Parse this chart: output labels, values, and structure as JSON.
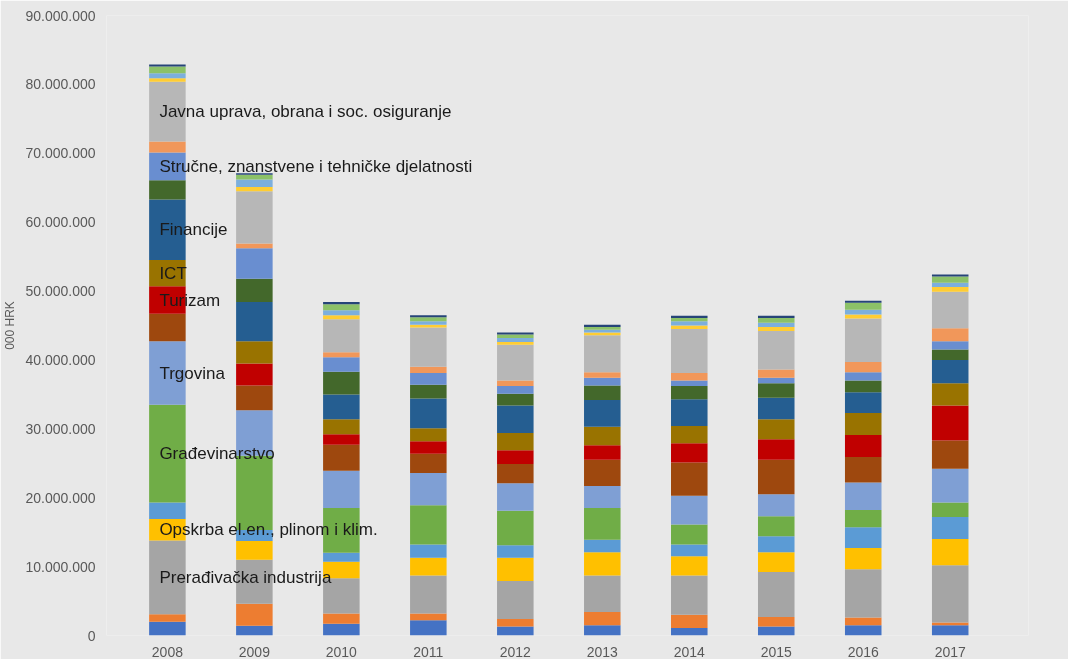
{
  "chart_data": {
    "type": "bar",
    "stacked": true,
    "ylabel": "000 HRK",
    "categories": [
      "2008",
      "2009",
      "2010",
      "2011",
      "2012",
      "2013",
      "2014",
      "2015",
      "2016",
      "2017"
    ],
    "ylim": [
      0,
      90000000
    ],
    "yticks": [
      0,
      {
        "value": 10000000,
        "label": "10.000.000"
      },
      {
        "value": 20000000,
        "label": "20.000.000"
      },
      {
        "value": 30000000,
        "label": "30.000.000"
      },
      {
        "value": 40000000,
        "label": "40.000.000"
      },
      {
        "value": 50000000,
        "label": "50.000.000"
      },
      {
        "value": 60000000,
        "label": "60.000.000"
      },
      {
        "value": 70000000,
        "label": "70.000.000"
      },
      {
        "value": 80000000,
        "label": "80.000.000"
      },
      {
        "value": 90000000,
        "label": "90.000.000"
      }
    ],
    "series": [
      {
        "color": "#4472c4",
        "values": [
          2000000,
          1400000,
          1700000,
          2200000,
          1300000,
          1500000,
          1100000,
          1300000,
          1500000,
          1500000
        ]
      },
      {
        "color": "#ed7d31",
        "values": [
          1100000,
          3200000,
          1500000,
          1000000,
          1100000,
          1900000,
          1900000,
          1400000,
          1100000,
          400000
        ]
      },
      {
        "name": "Prerađivačka industrija",
        "color": "#a5a5a5",
        "values": [
          10700000,
          6400000,
          5100000,
          5500000,
          5500000,
          5300000,
          5700000,
          6500000,
          7000000,
          8300000
        ]
      },
      {
        "name": "Opskrba el.en., plinom i klim.",
        "color": "#ffc000",
        "values": [
          3100000,
          2700000,
          2400000,
          2600000,
          3400000,
          3400000,
          2800000,
          2900000,
          3100000,
          3800000
        ]
      },
      {
        "color": "#5b9bd5",
        "values": [
          2400000,
          1600000,
          1300000,
          1900000,
          1800000,
          1800000,
          1700000,
          2300000,
          3000000,
          3200000
        ]
      },
      {
        "name": "Građevinarstvo",
        "color": "#70ad47",
        "values": [
          14200000,
          10800000,
          6500000,
          5700000,
          5000000,
          4600000,
          2900000,
          2900000,
          2500000,
          2100000
        ]
      },
      {
        "name": "Trgovina",
        "color": "#7f9fd4",
        "values": [
          9200000,
          6600000,
          5400000,
          4700000,
          4000000,
          3200000,
          4200000,
          3200000,
          4000000,
          4900000
        ]
      },
      {
        "color": "#9e480e",
        "values": [
          4000000,
          3600000,
          3800000,
          2800000,
          2800000,
          3800000,
          4800000,
          5000000,
          3700000,
          4100000
        ]
      },
      {
        "name": "Turizam",
        "color": "#c00000",
        "values": [
          4000000,
          3200000,
          1500000,
          1800000,
          2000000,
          2100000,
          2800000,
          3000000,
          3200000,
          5100000
        ]
      },
      {
        "name": "ICT",
        "color": "#997300",
        "values": [
          3800000,
          3200000,
          2200000,
          1900000,
          2500000,
          2700000,
          2500000,
          2900000,
          3200000,
          3200000
        ]
      },
      {
        "name": "Financije",
        "color": "#255e91",
        "values": [
          8800000,
          5700000,
          3600000,
          4300000,
          4000000,
          3900000,
          3900000,
          3100000,
          3000000,
          3400000
        ]
      },
      {
        "color": "#43682b",
        "values": [
          2800000,
          3400000,
          3300000,
          2000000,
          1700000,
          2100000,
          1900000,
          2100000,
          1700000,
          1500000
        ]
      },
      {
        "name": "Stručne, znanstvene i tehničke djelatnosti",
        "color": "#698ed0",
        "values": [
          4000000,
          4400000,
          2100000,
          1700000,
          1100000,
          1100000,
          800000,
          800000,
          1200000,
          1200000
        ]
      },
      {
        "color": "#f1975a",
        "values": [
          1600000,
          700000,
          700000,
          900000,
          800000,
          800000,
          1100000,
          1200000,
          1500000,
          1900000
        ]
      },
      {
        "name": "Javna uprava, obrana i soc. osiguranje",
        "color": "#b7b7b7",
        "values": [
          8700000,
          7600000,
          4800000,
          5700000,
          5200000,
          5400000,
          6400000,
          5600000,
          6300000,
          5300000
        ]
      },
      {
        "color": "#ffcd33",
        "values": [
          500000,
          600000,
          600000,
          400000,
          400000,
          400000,
          500000,
          600000,
          600000,
          700000
        ]
      },
      {
        "color": "#7cafdd",
        "values": [
          700000,
          1100000,
          700000,
          500000,
          600000,
          400000,
          600000,
          600000,
          700000,
          600000
        ]
      },
      {
        "color": "#8cc168",
        "values": [
          1000000,
          700000,
          900000,
          600000,
          500000,
          400000,
          500000,
          700000,
          1000000,
          900000
        ]
      },
      {
        "color": "#264478",
        "values": [
          300000,
          200000,
          300000,
          300000,
          300000,
          300000,
          300000,
          300000,
          300000,
          300000
        ]
      }
    ]
  }
}
